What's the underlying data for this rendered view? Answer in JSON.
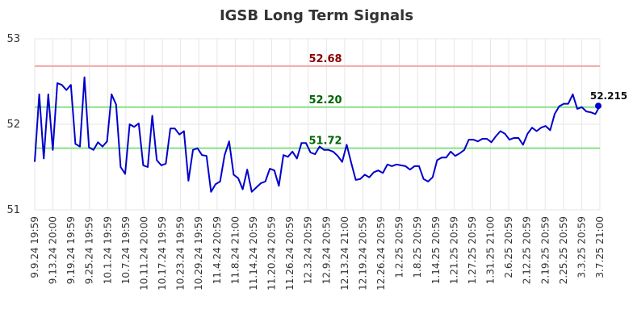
{
  "chart_data": {
    "type": "line",
    "title": "IGSB Long Term Signals",
    "ylim": [
      51,
      53
    ],
    "y_ticks": [
      51,
      52,
      53
    ],
    "x_tick_labels": [
      "9.9.24 19:59",
      "9.13.24 20:00",
      "9.19.24 19:59",
      "9.25.24 19:59",
      "10.1.24 19:59",
      "10.7.24 19:59",
      "10.11.24 20:00",
      "10.17.24 19:59",
      "10.23.24 19:59",
      "10.29.24 19:59",
      "11.4.24 20:59",
      "11.8.24 21:00",
      "11.14.24 20:59",
      "11.20.24 20:59",
      "11.26.24 20:59",
      "12.3.24 20:59",
      "12.9.24 20:59",
      "12.13.24 21:00",
      "12.19.24 20:59",
      "12.26.24 20:59",
      "1.2.25 20:59",
      "1.8.25 20:59",
      "1.14.25 20:59",
      "1.21.25 20:59",
      "1.27.25 20:59",
      "1.31.25 21:00",
      "2.6.25 20:59",
      "2.12.25 20:59",
      "2.19.25 20:59",
      "2.25.25 20:59",
      "3.3.25 20:59",
      "3.7.25 21:00"
    ],
    "grid": true,
    "series": [
      {
        "color": "#0000cc",
        "values": [
          51.56,
          52.35,
          51.6,
          52.35,
          51.7,
          52.48,
          52.46,
          52.4,
          52.46,
          51.77,
          51.74,
          52.55,
          51.73,
          51.7,
          51.79,
          51.74,
          51.8,
          52.35,
          52.23,
          51.5,
          51.42,
          52.0,
          51.97,
          52.01,
          51.52,
          51.5,
          52.1,
          51.58,
          51.52,
          51.54,
          51.95,
          51.95,
          51.88,
          51.92,
          51.34,
          51.7,
          51.72,
          51.64,
          51.63,
          51.21,
          51.3,
          51.33,
          51.64,
          51.8,
          51.41,
          51.37,
          51.24,
          51.47,
          51.21,
          51.26,
          51.31,
          51.33,
          51.48,
          51.46,
          51.28,
          51.64,
          51.62,
          51.68,
          51.6,
          51.78,
          51.78,
          51.67,
          51.65,
          51.74,
          51.7,
          51.7,
          51.68,
          51.63,
          51.56,
          51.76,
          51.55,
          51.35,
          51.36,
          51.41,
          51.38,
          51.44,
          51.46,
          51.43,
          51.53,
          51.51,
          51.53,
          51.52,
          51.51,
          51.47,
          51.51,
          51.51,
          51.36,
          51.33,
          51.38,
          51.58,
          51.61,
          51.61,
          51.68,
          51.63,
          51.66,
          51.7,
          51.82,
          51.82,
          51.8,
          51.83,
          51.83,
          51.79,
          51.86,
          51.92,
          51.89,
          51.82,
          51.84,
          51.84,
          51.76,
          51.89,
          51.96,
          51.92,
          51.96,
          51.98,
          51.93,
          52.12,
          52.21,
          52.24,
          52.24,
          52.35,
          52.18,
          52.2,
          52.15,
          52.14,
          52.12,
          52.215
        ]
      }
    ],
    "signal_lines": [
      {
        "value": 52.68,
        "label": "52.68",
        "color": "#f4a6a6",
        "label_color": "#8b0000"
      },
      {
        "value": 52.2,
        "label": "52.20",
        "color": "#88e088",
        "label_color": "#006400"
      },
      {
        "value": 51.72,
        "label": "51.72",
        "color": "#88e088",
        "label_color": "#006400"
      }
    ],
    "last_value_label": "52.215",
    "last_value": 52.215
  }
}
